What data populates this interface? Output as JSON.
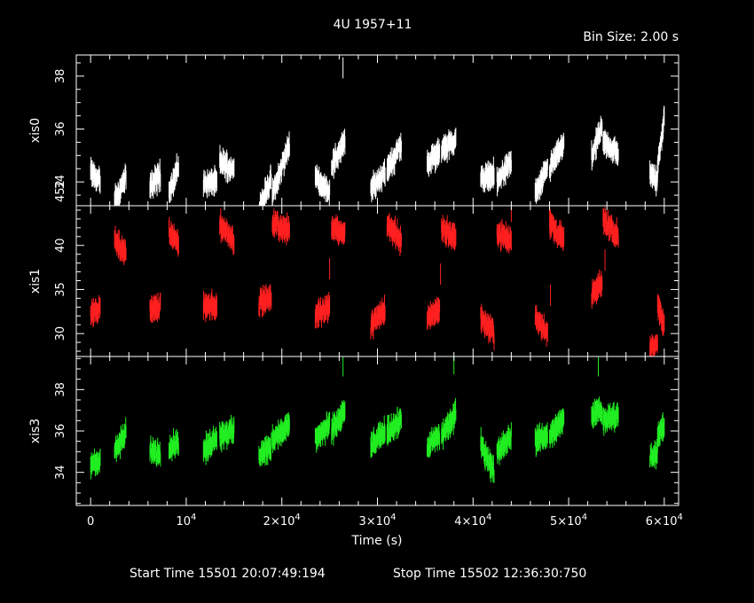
{
  "title": "4U 1957+11",
  "bin_size": "Bin Size: 2.00 s",
  "footer": {
    "start": "Start Time 15501 20:07:49:194",
    "stop": "Stop Time 15502 12:36:30:750"
  },
  "chart_data": {
    "type": "scatter",
    "xlabel": "Time (s)",
    "xlim": [
      -1500,
      61500
    ],
    "x_ticks": [
      {
        "value": 0,
        "label": "0"
      },
      {
        "value": 10000,
        "base": "10",
        "exp": "4"
      },
      {
        "value": 20000,
        "base": "2×10",
        "exp": "4"
      },
      {
        "value": 30000,
        "base": "3×10",
        "exp": "4"
      },
      {
        "value": 40000,
        "base": "4×10",
        "exp": "4"
      },
      {
        "value": 50000,
        "base": "5×10",
        "exp": "4"
      },
      {
        "value": 60000,
        "base": "6×10",
        "exp": "4"
      }
    ],
    "segments_x": [
      [
        0,
        1000
      ],
      [
        2500,
        3700
      ],
      [
        6200,
        7300
      ],
      [
        8200,
        9200
      ],
      [
        11800,
        13200
      ],
      [
        13500,
        15000
      ],
      [
        17600,
        18900
      ],
      [
        19000,
        20800
      ],
      [
        23500,
        25000
      ],
      [
        25200,
        26600
      ],
      [
        29300,
        30800
      ],
      [
        31000,
        32500
      ],
      [
        35200,
        36500
      ],
      [
        36700,
        38200
      ],
      [
        40800,
        42200
      ],
      [
        42500,
        44000
      ],
      [
        46500,
        47800
      ],
      [
        48000,
        49500
      ],
      [
        52400,
        53500
      ],
      [
        53600,
        55200
      ],
      [
        58500,
        59300
      ],
      [
        59300,
        60000
      ]
    ],
    "panels": [
      {
        "ylabel": "xis0",
        "color": "#ffffff",
        "ylim": [
          33.1,
          38.8
        ],
        "y_ticks": [
          {
            "value": 34,
            "label": "34"
          },
          {
            "value": 36,
            "label": "36"
          },
          {
            "value": 38,
            "label": "38"
          }
        ],
        "corner_label": "452",
        "segments_y": [
          [
            34.4,
            34.0
          ],
          [
            33.3,
            34.2
          ],
          [
            33.8,
            34.3
          ],
          [
            33.6,
            34.6
          ],
          [
            33.9,
            34.0
          ],
          [
            34.8,
            34.4
          ],
          [
            33.0,
            34.1
          ],
          [
            33.5,
            35.4
          ],
          [
            34.2,
            33.6
          ],
          [
            34.6,
            35.5
          ],
          [
            33.7,
            34.4
          ],
          [
            34.4,
            35.4
          ],
          [
            34.7,
            35.1
          ],
          [
            35.2,
            35.6
          ],
          [
            34.1,
            34.3
          ],
          [
            34.0,
            34.8
          ],
          [
            33.5,
            34.5
          ],
          [
            34.5,
            35.4
          ],
          [
            35.0,
            36.0
          ],
          [
            35.5,
            35.1
          ],
          [
            34.3,
            34.0
          ],
          [
            34.6,
            36.5
          ]
        ],
        "spikes": [
          [
            26400,
            38.6
          ],
          [
            40800,
            32.2
          ]
        ]
      },
      {
        "ylabel": "xis1",
        "color": "#ff2020",
        "ylim": [
          27.4,
          44.5
        ],
        "y_ticks": [
          {
            "value": 30,
            "label": "30"
          },
          {
            "value": 35,
            "label": "35"
          },
          {
            "value": 40,
            "label": "40"
          }
        ],
        "segments_y": [
          [
            32.2,
            33.2
          ],
          [
            40.6,
            39.0
          ],
          [
            32.8,
            33.0
          ],
          [
            41.4,
            40.3
          ],
          [
            33.0,
            33.2
          ],
          [
            42.4,
            40.6
          ],
          [
            33.5,
            34.0
          ],
          [
            42.6,
            41.6
          ],
          [
            32.0,
            33.2
          ],
          [
            42.2,
            41.2
          ],
          [
            31.0,
            32.8
          ],
          [
            42.4,
            40.6
          ],
          [
            31.5,
            33.0
          ],
          [
            42.0,
            40.8
          ],
          [
            31.8,
            30.0
          ],
          [
            41.5,
            40.5
          ],
          [
            32.0,
            30.0
          ],
          [
            42.6,
            40.5
          ],
          [
            34.2,
            35.8
          ],
          [
            43.0,
            41.0
          ],
          [
            28.5,
            28.8
          ],
          [
            32.8,
            31.0
          ]
        ],
        "spikes": [
          [
            25000,
            38.2
          ],
          [
            36600,
            37.6
          ],
          [
            44000,
            44.7
          ],
          [
            48100,
            35.2
          ],
          [
            53800,
            39.2
          ]
        ]
      },
      {
        "ylabel": "xis3",
        "color": "#22ee22",
        "ylim": [
          32.4,
          39.6
        ],
        "y_ticks": [
          {
            "value": 34,
            "label": "34"
          },
          {
            "value": 36,
            "label": "36"
          },
          {
            "value": 38,
            "label": "38"
          }
        ],
        "segments_y": [
          [
            34.3,
            34.6
          ],
          [
            35.0,
            35.9
          ],
          [
            35.0,
            35.0
          ],
          [
            35.3,
            35.4
          ],
          [
            35.0,
            35.8
          ],
          [
            35.8,
            36.0
          ],
          [
            34.9,
            35.2
          ],
          [
            35.6,
            36.3
          ],
          [
            35.6,
            36.3
          ],
          [
            36.0,
            37.0
          ],
          [
            35.2,
            36.0
          ],
          [
            36.0,
            36.5
          ],
          [
            35.2,
            35.8
          ],
          [
            35.8,
            36.8
          ],
          [
            35.4,
            34.0
          ],
          [
            35.0,
            35.8
          ],
          [
            35.5,
            35.8
          ],
          [
            35.8,
            36.6
          ],
          [
            36.8,
            37.0
          ],
          [
            36.5,
            36.8
          ],
          [
            34.7,
            35.0
          ],
          [
            35.8,
            36.2
          ]
        ],
        "spikes": [
          [
            8000,
            32.2
          ],
          [
            26400,
            39.5
          ],
          [
            38000,
            39.6
          ],
          [
            53100,
            39.5
          ]
        ]
      }
    ]
  }
}
